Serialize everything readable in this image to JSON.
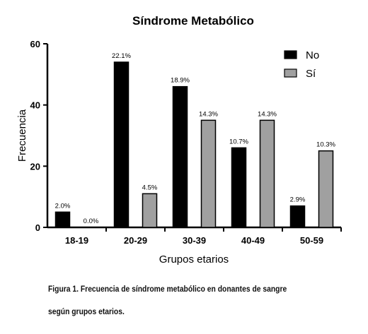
{
  "chart_data": {
    "type": "bar",
    "title": "Síndrome Metabólico",
    "xlabel": "Grupos etarios",
    "ylabel": "Frecuencia",
    "categories": [
      "18-19",
      "20-29",
      "30-39",
      "40-49",
      "50-59"
    ],
    "ylim": [
      0,
      60
    ],
    "yticks": [
      0,
      20,
      40,
      60
    ],
    "series": [
      {
        "name": "No",
        "color": "#000000",
        "values": [
          5,
          54,
          46,
          26,
          7
        ],
        "labels": [
          "2.0%",
          "22.1%",
          "18.9%",
          "10.7%",
          "2.9%"
        ]
      },
      {
        "name": "Sí",
        "color": "#a0a0a0",
        "values": [
          0,
          11,
          35,
          35,
          25
        ],
        "labels": [
          "0.0%",
          "4.5%",
          "14.3%",
          "14.3%",
          "10.3%"
        ]
      }
    ],
    "legend_position": "top-right",
    "grid": false
  },
  "caption": {
    "line1": "Figura 1. Frecuencia de síndrome metabólico en donantes de sangre",
    "line2": "según grupos etarios."
  }
}
